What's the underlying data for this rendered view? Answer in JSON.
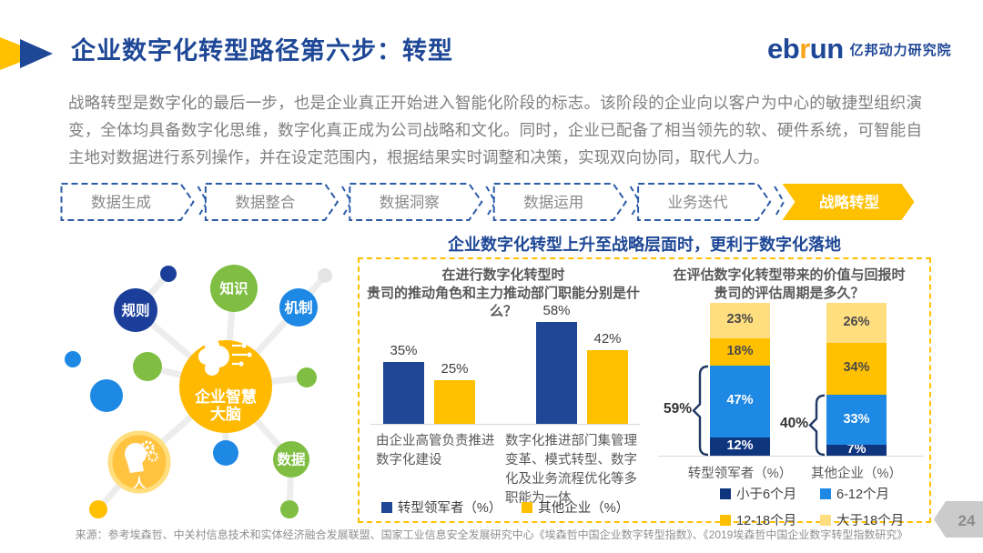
{
  "header": {
    "title": "企业数字化转型路径第六步：转型",
    "logo": {
      "parts": [
        "eb",
        "r",
        "un"
      ],
      "org": "亿邦动力研究院"
    },
    "accent_blue": "#1E4796",
    "accent_yellow": "#FFC000"
  },
  "intro": "战略转型是数字化的最后一步，也是企业真正开始进入智能化阶段的标志。该阶段的企业向以客户为中心的敏捷型组织演变，全体均具备数字化思维，数字化真正成为公司战略和文化。同时，企业已配备了相当领先的软、硬件系统，可智能自主地对数据进行系列操作，并在设定范围内，根据结果实时调整和决策，实现双向协同，取代人力。",
  "flow": {
    "border_color": "#2B5CA8",
    "active_color": "#FFC000",
    "steps": [
      {
        "label": "数据生成",
        "active": false
      },
      {
        "label": "数据整合",
        "active": false
      },
      {
        "label": "数据洞察",
        "active": false
      },
      {
        "label": "数据运用",
        "active": false
      },
      {
        "label": "业务迭代",
        "active": false
      },
      {
        "label": "战略转型",
        "active": true
      }
    ]
  },
  "section_subtitle": "企业数字化转型上升至战略层面时，更利于数字化落地",
  "diagram": {
    "center_label_lines": [
      "企业智慧",
      "大脑"
    ],
    "center_color": "#FFB900",
    "person_label": "人",
    "nodes": [
      {
        "label": "规则",
        "color": "#1B3E9B"
      },
      {
        "label": "知识",
        "color": "#7FBE42"
      },
      {
        "label": "机制",
        "color": "#1E88E5"
      },
      {
        "label": "数据",
        "color": "#7FBE42"
      }
    ]
  },
  "chart_data": [
    {
      "type": "bar",
      "title": "在进行数字化转型时 贵司的推动角色和主力推动部门职能分别是什么？",
      "title_lines": [
        "在进行数字化转型时",
        "贵司的推动角色和主力推动部门职能分别是什么？"
      ],
      "categories": [
        "由企业高管负责推进数字化建设",
        "数字化推进部门集管理变革、模式转型、数字化及业务流程优化等多职能为一体"
      ],
      "series": [
        {
          "name": "转型领军者（%）",
          "color": "#1F4795",
          "values": [
            35,
            58
          ]
        },
        {
          "name": "其他企业（%）",
          "color": "#FFC000",
          "values": [
            25,
            42
          ]
        }
      ],
      "value_suffix": "%",
      "ylim": [
        0,
        65
      ],
      "grid": false,
      "legend_position": "bottom"
    },
    {
      "type": "stacked-bar",
      "title": "在评估数字化转型带来的价值与回报时 贵司的评估周期是多久？",
      "title_lines": [
        "在评估数字化转型带来的价值与回报时",
        "贵司的评估周期是多久？"
      ],
      "categories": [
        "转型领军者（%）",
        "其他企业（%）"
      ],
      "series": [
        {
          "name": "小于6个月",
          "color": "#10357F",
          "values": [
            12,
            7
          ]
        },
        {
          "name": "6-12个月",
          "color": "#1E88E5",
          "values": [
            47,
            33
          ]
        },
        {
          "name": "12-18个月",
          "color": "#FFC000",
          "values": [
            18,
            34
          ]
        },
        {
          "name": "大于18个月",
          "color": "#FFDE7F",
          "values": [
            23,
            26
          ]
        }
      ],
      "annotations": [
        {
          "category_index": 0,
          "label": "59%",
          "series_span": [
            0,
            1
          ]
        },
        {
          "category_index": 1,
          "label": "40%",
          "series_span": [
            0,
            1
          ]
        }
      ],
      "value_suffix": "%",
      "ylim": [
        0,
        100
      ],
      "legend_position": "bottom"
    }
  ],
  "source": "来源：参考埃森哲、中关村信息技术和实体经济融合发展联盟、国家工业信息安全发展研究中心《埃森哲中国企业数字转型指数》、《2019埃森哲中国企业数字转型指数研究》",
  "page_number": "24"
}
